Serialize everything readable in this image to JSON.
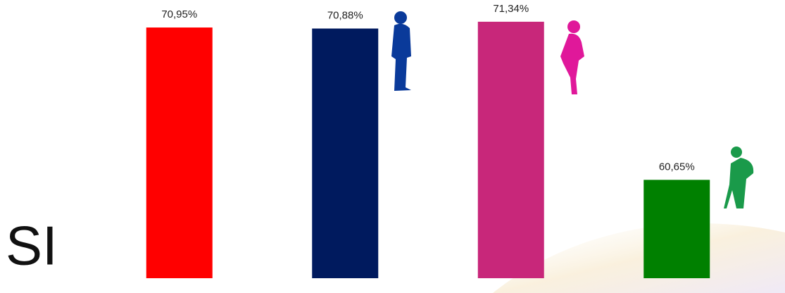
{
  "chart_data": {
    "type": "bar",
    "title": "SI",
    "categories": [
      null,
      null,
      null,
      null
    ],
    "values": [
      70.95,
      70.88,
      71.34,
      60.65
    ],
    "value_labels": [
      "70,95%",
      "70,88%",
      "71,34%",
      "60,65%"
    ],
    "colors": [
      "#ff0000",
      "#001a5e",
      "#c8277a",
      "#008000"
    ],
    "ylim": [
      54,
      72.5
    ],
    "grid": false
  }
}
